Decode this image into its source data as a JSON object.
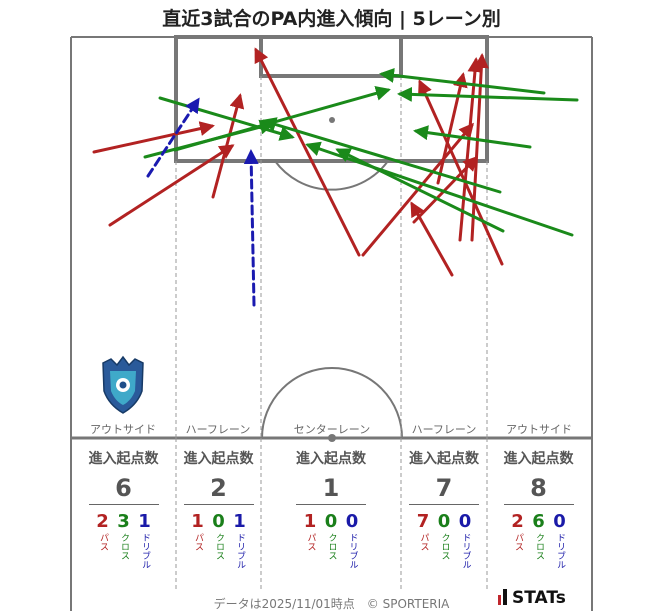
{
  "title": "直近3試合のPA内進入傾向 | 5レーン別",
  "lanes": [
    "アウトサイド",
    "ハーフレーン",
    "センターレーン",
    "ハーフレーン",
    "アウトサイド"
  ],
  "colors": {
    "pass": "#b22222",
    "cross": "#1a8a1a",
    "dribble": "#1a1ab0",
    "pitch_line": "#777777"
  },
  "icons": {
    "team_logo": "team-crest-icon",
    "stats_logo": "stats-logo-icon"
  },
  "summary": {
    "header_label": "進入起点数",
    "breakdown_labels": {
      "pass": "パス",
      "cross": "クロス",
      "dribble": "ドリブル"
    },
    "columns": [
      {
        "total": "6",
        "pass": "2",
        "cross": "3",
        "dribble": "1"
      },
      {
        "total": "2",
        "pass": "1",
        "cross": "0",
        "dribble": "1"
      },
      {
        "total": "1",
        "pass": "1",
        "cross": "0",
        "dribble": "0"
      },
      {
        "total": "7",
        "pass": "7",
        "cross": "0",
        "dribble": "0"
      },
      {
        "total": "8",
        "pass": "2",
        "cross": "6",
        "dribble": "0"
      }
    ]
  },
  "footer": "データは2025/11/01時点　© SPORTERIA",
  "stats_logo_text": "STATs",
  "chart_data": {
    "type": "pitch-arrows",
    "arrows": [
      {
        "kind": "pass",
        "from": [
          94,
          152
        ],
        "to": [
          212,
          126
        ]
      },
      {
        "kind": "pass",
        "from": [
          110,
          225
        ],
        "to": [
          232,
          146
        ]
      },
      {
        "kind": "pass",
        "from": [
          213,
          197
        ],
        "to": [
          240,
          96
        ]
      },
      {
        "kind": "pass",
        "from": [
          359,
          255
        ],
        "to": [
          256,
          50
        ]
      },
      {
        "kind": "pass",
        "from": [
          414,
          222
        ],
        "to": [
          476,
          158
        ]
      },
      {
        "kind": "pass",
        "from": [
          452,
          275
        ],
        "to": [
          412,
          204
        ]
      },
      {
        "kind": "pass",
        "from": [
          363,
          255
        ],
        "to": [
          472,
          125
        ]
      },
      {
        "kind": "pass",
        "from": [
          438,
          183
        ],
        "to": [
          463,
          75
        ]
      },
      {
        "kind": "pass",
        "from": [
          460,
          240
        ],
        "to": [
          476,
          60
        ]
      },
      {
        "kind": "pass",
        "from": [
          472,
          240
        ],
        "to": [
          482,
          56
        ]
      },
      {
        "kind": "pass",
        "from": [
          502,
          264
        ],
        "to": [
          420,
          82
        ]
      },
      {
        "kind": "cross",
        "from": [
          160,
          98
        ],
        "to": [
          292,
          137
        ]
      },
      {
        "kind": "cross",
        "from": [
          175,
          150
        ],
        "to": [
          388,
          90
        ]
      },
      {
        "kind": "cross",
        "from": [
          145,
          157
        ],
        "to": [
          272,
          124
        ]
      },
      {
        "kind": "cross",
        "from": [
          577,
          100
        ],
        "to": [
          400,
          94
        ]
      },
      {
        "kind": "cross",
        "from": [
          544,
          93
        ],
        "to": [
          382,
          74
        ]
      },
      {
        "kind": "cross",
        "from": [
          530,
          147
        ],
        "to": [
          416,
          131
        ]
      },
      {
        "kind": "cross",
        "from": [
          503,
          231
        ],
        "to": [
          338,
          150
        ]
      },
      {
        "kind": "cross",
        "from": [
          572,
          235
        ],
        "to": [
          308,
          145
        ]
      },
      {
        "kind": "cross",
        "from": [
          500,
          192
        ],
        "to": [
          264,
          121
        ]
      },
      {
        "kind": "dribble",
        "from": [
          148,
          176
        ],
        "to": [
          198,
          100
        ]
      },
      {
        "kind": "dribble",
        "from": [
          254,
          305
        ],
        "to": [
          251,
          152
        ]
      }
    ]
  }
}
